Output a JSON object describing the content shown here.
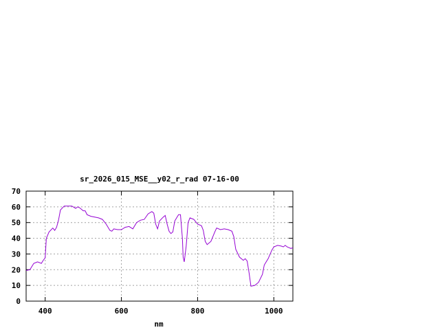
{
  "chart_data": {
    "type": "line",
    "title": "sr_2026_015_MSE__y02_r_rad 07-16-00",
    "xlabel": "nm",
    "ylabel": "",
    "xlim": [
      350,
      1050
    ],
    "ylim": [
      0,
      70
    ],
    "xticks": [
      400,
      600,
      800,
      1000
    ],
    "yticks": [
      0,
      10,
      20,
      30,
      40,
      50,
      60,
      70
    ],
    "grid": true,
    "line_color": "#9400d3",
    "series": [
      {
        "x": [
          350,
          360,
          370,
          380,
          390,
          395,
          400,
          403,
          410,
          420,
          425,
          430,
          435,
          440,
          450,
          457,
          470,
          480,
          485,
          490,
          500,
          505,
          510,
          520,
          540,
          550,
          560,
          570,
          575,
          580,
          590,
          600,
          610,
          620,
          630,
          640,
          650,
          660,
          670,
          680,
          685,
          690,
          695,
          700,
          710,
          715,
          720,
          725,
          730,
          735,
          740,
          750,
          755,
          760,
          762,
          765,
          770,
          775,
          780,
          790,
          800,
          810,
          815,
          820,
          825,
          835,
          845,
          850,
          860,
          870,
          880,
          890,
          895,
          900,
          910,
          920,
          925,
          930,
          935,
          940,
          950,
          960,
          970,
          975,
          985,
          995,
          1000,
          1010,
          1020,
          1025,
          1030,
          1035,
          1040,
          1045,
          1050
        ],
        "y": [
          19.5,
          20,
          24,
          25,
          24,
          26,
          27.5,
          40,
          44,
          46.5,
          45,
          47,
          51.5,
          58,
          60.5,
          60.5,
          60.5,
          59,
          60,
          59.5,
          57.5,
          57.5,
          55,
          54,
          53,
          52,
          49,
          45,
          44.5,
          46,
          45.5,
          45.5,
          47,
          47.5,
          46,
          50,
          51.5,
          52,
          55.5,
          57,
          56,
          49,
          46,
          51,
          53.5,
          54.5,
          49,
          44.5,
          43,
          44,
          51,
          55,
          55,
          40,
          28,
          25,
          35,
          50,
          53,
          52,
          49,
          48,
          45,
          38,
          36,
          38,
          44,
          46.5,
          45.5,
          46,
          45.5,
          44.5,
          41,
          33,
          28,
          26,
          27,
          25.5,
          18,
          9.5,
          10,
          12,
          17,
          23,
          27,
          32.5,
          34.5,
          35.5,
          35,
          34.5,
          35.5,
          34.5,
          34,
          33.5,
          34
        ]
      }
    ]
  }
}
